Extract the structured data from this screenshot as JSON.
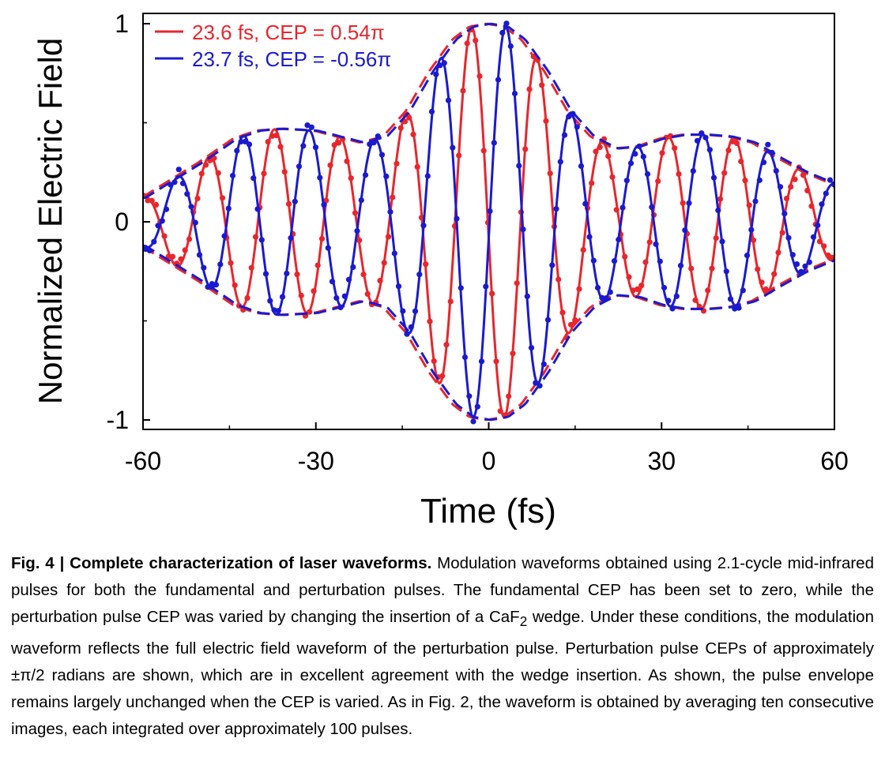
{
  "chart_data": {
    "type": "line",
    "xlabel": "Time (fs)",
    "ylabel": "Normalized Electric Field",
    "xlim": [
      -60,
      60
    ],
    "ylim": [
      -1.05,
      1.05
    ],
    "x_ticks": [
      -60,
      -30,
      0,
      30,
      60
    ],
    "x_tick_labels": [
      "-60",
      "-30",
      "0",
      "30",
      "60"
    ],
    "y_ticks": [
      -1,
      0,
      1
    ],
    "y_tick_labels": [
      "-1",
      "0",
      "1"
    ],
    "legend_position": "top-left",
    "envelope": {
      "t": [
        -60,
        -50,
        -44,
        -40,
        -36,
        -30,
        -26,
        -22,
        -18,
        -14,
        -10,
        -6,
        -3,
        0,
        3,
        6,
        10,
        14,
        18,
        22,
        26,
        30,
        34,
        38,
        42,
        46,
        50,
        55,
        60
      ],
      "a": [
        0.12,
        0.3,
        0.42,
        0.46,
        0.47,
        0.46,
        0.43,
        0.4,
        0.43,
        0.56,
        0.76,
        0.92,
        0.985,
        1.0,
        0.985,
        0.92,
        0.76,
        0.56,
        0.43,
        0.37,
        0.38,
        0.42,
        0.44,
        0.44,
        0.43,
        0.4,
        0.33,
        0.25,
        0.19
      ]
    },
    "series": [
      {
        "name": "red",
        "label": "23.6 fs, CEP = 0.54π",
        "color": "#e8262c",
        "period_fs": 11.4,
        "peak_fs": -3.0,
        "cep_pi": 0.54
      },
      {
        "name": "blue",
        "label": "23.7 fs, CEP = -0.56π",
        "color": "#1a1ad0",
        "period_fs": 11.4,
        "peak_fs": 3.0,
        "cep_pi": -0.56
      }
    ]
  },
  "caption": {
    "lead": "Fig. 4 | Complete characterization of laser waveforms.",
    "part1": " Modulation waveforms obtained using 2.1-cycle mid-infrared pulses for both the fundamental and perturbation pulses. The fundamental CEP has been set to zero, while the perturbation pulse CEP was varied by changing the insertion of a CaF",
    "sub": "2",
    "part2": " wedge. Under these conditions, the modulation waveform reflects the full electric field waveform of the perturbation pulse. Perturbation pulse CEPs of approximately ±π/2 radians are shown, which are in excellent agreement with the wedge insertion. As shown, the pulse envelope remains largely unchanged when the CEP is varied. As in Fig. 2, the waveform is obtained by averaging ten consecutive images, each integrated over approximately 100 pulses."
  }
}
